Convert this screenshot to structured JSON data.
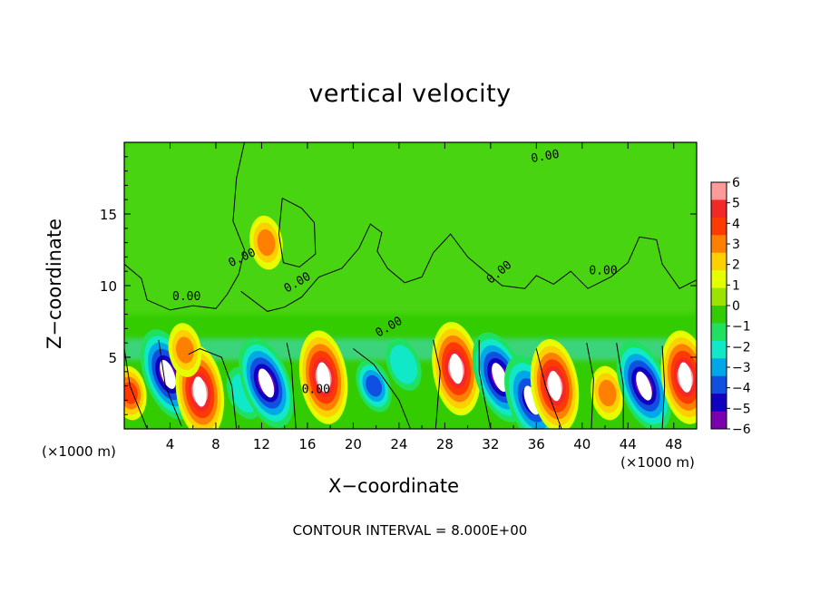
{
  "chart_data": {
    "type": "heatmap",
    "title": "vertical velocity",
    "xlabel": "X−coordinate",
    "ylabel": "Z−coordinate",
    "x_unit": "(×1000 m)",
    "footnote": "CONTOUR INTERVAL = 8.000E+00",
    "xlim": [
      0,
      50
    ],
    "ylim": [
      0,
      20
    ],
    "x_ticks": [
      4,
      8,
      12,
      16,
      20,
      24,
      28,
      32,
      36,
      40,
      44,
      48
    ],
    "y_ticks": [
      5,
      10,
      15
    ],
    "colorbar": {
      "min": -6,
      "max": 6,
      "ticks": [
        6,
        5,
        4,
        3,
        2,
        1,
        0,
        -1,
        -2,
        -3,
        -4,
        -5,
        -6
      ],
      "colors": [
        "#ff9a9a",
        "#f52828",
        "#ff3a00",
        "#ff8000",
        "#ffd000",
        "#e6ff00",
        "#9be400",
        "#33cc00",
        "#20e060",
        "#10e8c8",
        "#00a8e8",
        "#1050e0",
        "#1000c0",
        "#7a00b0"
      ]
    },
    "contour_labels": [
      "0.00",
      "0.00",
      "0.00",
      "0.00",
      "0.00",
      "0.00",
      "0.00",
      "0.00"
    ],
    "features": [
      {
        "x": 0.5,
        "z": 2.5,
        "w": 3.5
      },
      {
        "x": 3.8,
        "z": 3.8,
        "w": -5.5
      },
      {
        "x": 6.6,
        "z": 2.6,
        "w": 5.8
      },
      {
        "x": 10.5,
        "z": 2.5,
        "w": -2.5
      },
      {
        "x": 12.4,
        "z": 3.2,
        "w": -6.0
      },
      {
        "x": 17.4,
        "z": 3.6,
        "w": 5.6
      },
      {
        "x": 21.8,
        "z": 3.0,
        "w": -3.5
      },
      {
        "x": 24.4,
        "z": 4.5,
        "w": -2.5
      },
      {
        "x": 29.0,
        "z": 4.2,
        "w": 6.0
      },
      {
        "x": 32.8,
        "z": 3.6,
        "w": -6.0
      },
      {
        "x": 35.6,
        "z": 2.0,
        "w": -5.0
      },
      {
        "x": 37.6,
        "z": 3.0,
        "w": 5.8
      },
      {
        "x": 42.2,
        "z": 2.5,
        "w": 3.0
      },
      {
        "x": 45.4,
        "z": 3.0,
        "w": -5.8
      },
      {
        "x": 49.0,
        "z": 3.6,
        "w": 6.0
      },
      {
        "x": 12.4,
        "z": 13.0,
        "w": 3.0
      },
      {
        "x": 5.3,
        "z": 5.5,
        "w": 3.0
      }
    ]
  }
}
